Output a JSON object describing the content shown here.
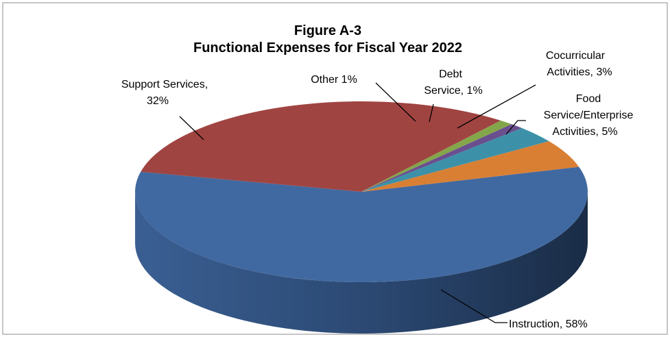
{
  "chart_data": {
    "type": "pie",
    "title_lines": [
      "Figure A-3",
      "Functional Expenses for Fiscal Year 2022"
    ],
    "slices": [
      {
        "name": "Instruction",
        "value": 58,
        "color": "#4169A1",
        "label_lines": [
          "Instruction, 58%"
        ]
      },
      {
        "name": "Support Services",
        "value": 32,
        "color": "#A04442",
        "label_lines": [
          "Support Services,",
          "32%"
        ]
      },
      {
        "name": "Other",
        "value": 1,
        "color": "#84A64A",
        "label_lines": [
          "Other 1%"
        ]
      },
      {
        "name": "Debt Service",
        "value": 1,
        "color": "#6A4F8F",
        "label_lines": [
          "Debt",
          "Service, 1%"
        ]
      },
      {
        "name": "Cocurricular Activities",
        "value": 3,
        "color": "#3C91A8",
        "label_lines": [
          "Cocurricular",
          "Activities, 3%"
        ]
      },
      {
        "name": "Food Service/Enterprise Activities",
        "value": 5,
        "color": "#D97F34",
        "label_lines": [
          "Food",
          "Service/Enterprise",
          "Activities, 5%"
        ]
      }
    ],
    "legend": "none",
    "style": "3d-pie"
  }
}
